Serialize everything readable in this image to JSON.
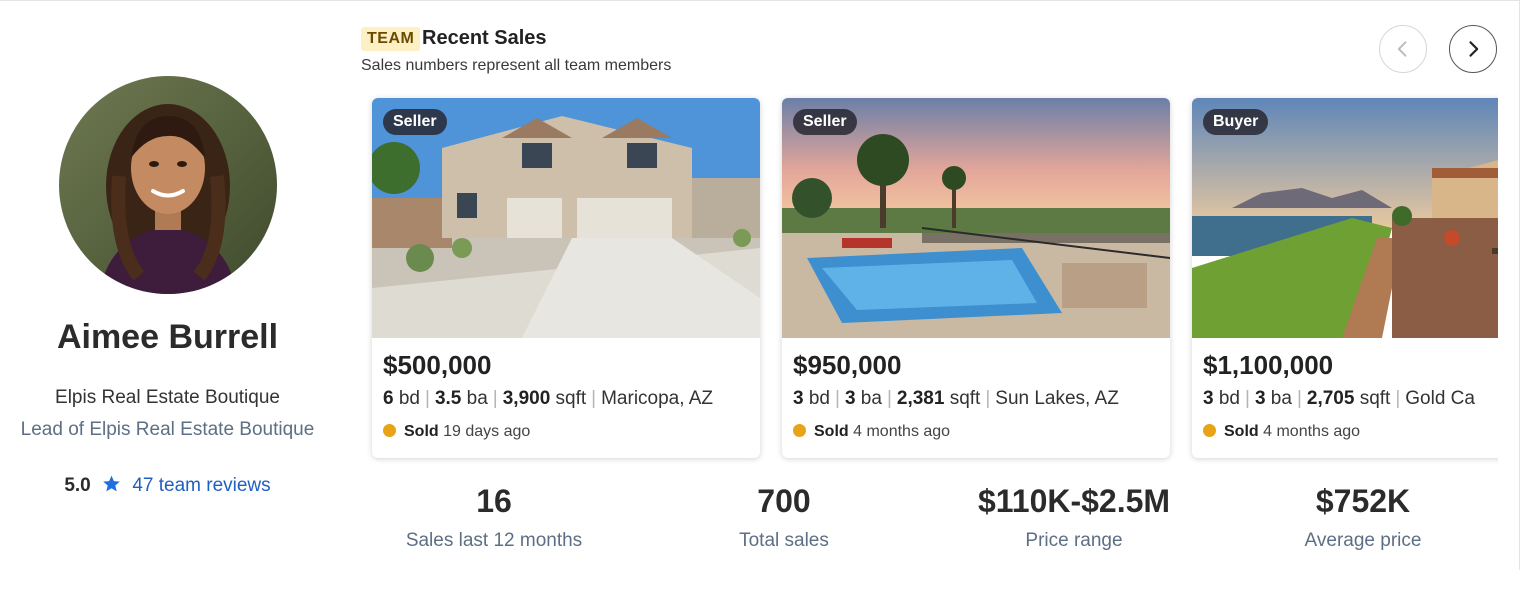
{
  "agent": {
    "name": "Aimee Burrell",
    "brokerage": "Elpis Real Estate Boutique",
    "role": "Lead of Elpis Real Estate Boutique",
    "rating": "5.0",
    "reviews_label": "47 team reviews"
  },
  "section": {
    "badge": "TEAM",
    "title": "Recent Sales",
    "subtitle": "Sales numbers represent all team members"
  },
  "nav": {
    "prev_icon": "chevron-left-icon",
    "next_icon": "chevron-right-icon"
  },
  "listings": [
    {
      "tag": "Seller",
      "price": "$500,000",
      "beds": "6",
      "beds_unit": "bd",
      "baths": "3.5",
      "baths_unit": "ba",
      "sqft": "3,900",
      "sqft_unit": "sqft",
      "location": "Maricopa, AZ",
      "status": "Sold",
      "when": "19 days ago"
    },
    {
      "tag": "Seller",
      "price": "$950,000",
      "beds": "3",
      "beds_unit": "bd",
      "baths": "3",
      "baths_unit": "ba",
      "sqft": "2,381",
      "sqft_unit": "sqft",
      "location": "Sun Lakes, AZ",
      "status": "Sold",
      "when": "4 months ago"
    },
    {
      "tag": "Buyer",
      "price": "$1,100,000",
      "beds": "3",
      "beds_unit": "bd",
      "baths": "3",
      "baths_unit": "ba",
      "sqft": "2,705",
      "sqft_unit": "sqft",
      "location": "Gold Ca",
      "status": "Sold",
      "when": "4 months ago"
    }
  ],
  "stats": [
    {
      "value": "16",
      "label": "Sales last 12 months"
    },
    {
      "value": "700",
      "label": "Total sales"
    },
    {
      "value": "$110K-$2.5M",
      "label": "Price range"
    },
    {
      "value": "$752K",
      "label": "Average price"
    }
  ],
  "colors": {
    "accent_link": "#1f5fbf",
    "sold_dot": "#e8a317",
    "badge_bg": "#fdf0c5",
    "star": "#1f6fe0"
  }
}
